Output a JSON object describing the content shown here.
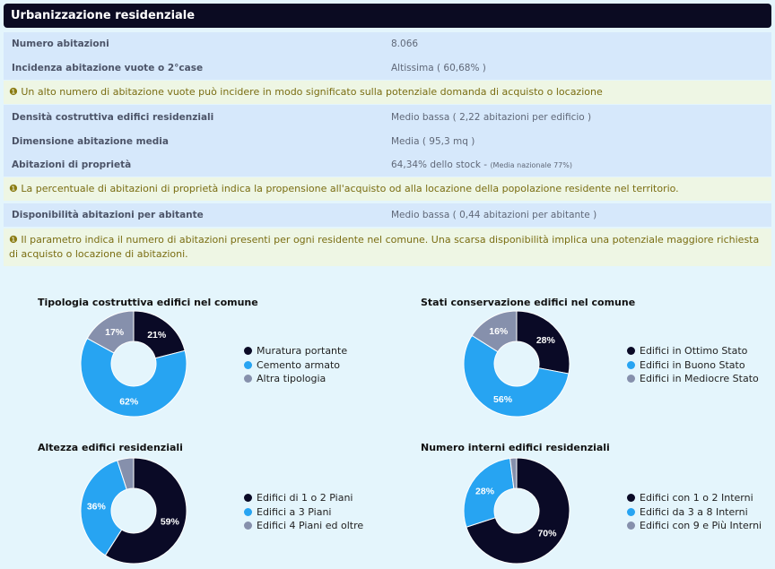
{
  "title": "Urbanizzazione residenziale",
  "rows": [
    {
      "label": "Numero abitazioni",
      "value": "8.066"
    },
    {
      "label": "Incidenza abitazione vuote o 2°case",
      "value": "Altissima ( 60,68% )"
    },
    {
      "label": "Densità costruttiva edifici residenziali",
      "value": "Medio bassa ( 2,22 abitazioni per edificio )"
    },
    {
      "label": "Dimensione abitazione media",
      "value": "Media ( 95,3 mq )"
    },
    {
      "label": "Abitazioni di proprietà",
      "value": "64,34% dello stock - ",
      "note": "(Media nazionale 77%)"
    },
    {
      "label": "Disponibilità abitazioni per abitante",
      "value": "Medio bassa ( 0,44 abitazioni per abitante )"
    }
  ],
  "notes": [
    "Un alto numero di abitazione vuote può incidere in modo significato sulla potenziale domanda di acquisto o locazione",
    "La percentuale di abitazioni di proprietà indica la propensione all'acquisto od alla locazione della popolazione residente nel territorio.",
    "Il parametro indica il numero di abitazioni presenti per ogni residente nel comune. Una scarsa disponibilità implica una potenziale maggiore richiesta di acquisto o locazione di abitazioni."
  ],
  "colors": {
    "dark": "#0a0a26",
    "blue": "#27a4f2",
    "gray": "#8690ac"
  },
  "chart_data": [
    {
      "type": "pie",
      "title": "Tipologia costruttiva edifici nel comune",
      "categories": [
        "Muratura portante",
        "Cemento armato",
        "Altra tipologia"
      ],
      "values": [
        21,
        62,
        17
      ],
      "labels": [
        "21%",
        "62%",
        "17%"
      ]
    },
    {
      "type": "pie",
      "title": "Stati conservazione edifici nel comune",
      "categories": [
        "Edifici in Ottimo Stato",
        "Edifici in Buono Stato",
        "Edifici in Mediocre Stato"
      ],
      "values": [
        28,
        56,
        16
      ],
      "labels": [
        "28%",
        "56%",
        "16%"
      ]
    },
    {
      "type": "pie",
      "title": "Altezza edifici residenziali",
      "categories": [
        "Edifici di 1 o 2 Piani",
        "Edifici a 3 Piani",
        "Edifici 4 Piani ed oltre"
      ],
      "values": [
        59,
        36,
        5
      ],
      "labels": [
        "59%",
        "36%",
        ""
      ]
    },
    {
      "type": "pie",
      "title": "Numero interni edifici residenziali",
      "categories": [
        "Edifici con 1 o 2 Interni",
        "Edifici da 3 a 8 Interni",
        "Edifici con 9 e Più Interni"
      ],
      "values": [
        70,
        28,
        2
      ],
      "labels": [
        "70%",
        "28%",
        ""
      ]
    }
  ]
}
